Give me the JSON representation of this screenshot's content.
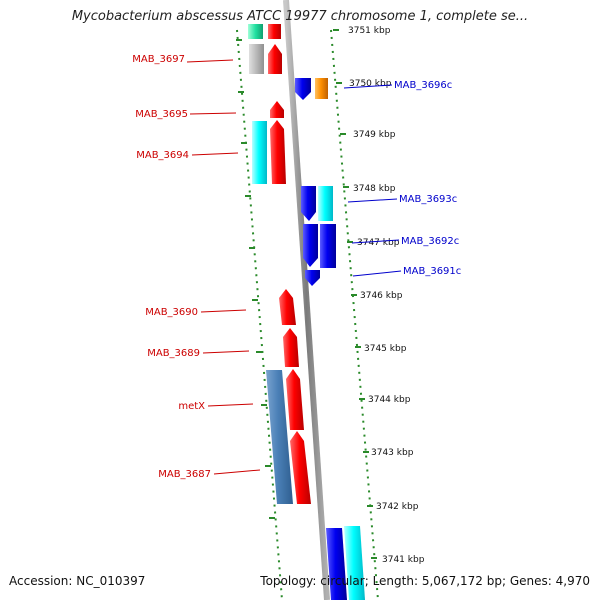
{
  "title": "Mycobacterium abscessus ATCC 19977 chromosome 1, complete se...",
  "footer": {
    "accession_label": "Accession:",
    "accession": "NC_010397",
    "topology_label": "Topology:",
    "topology": "circular;",
    "length_label": "Length:",
    "length": "5,067,172 bp;",
    "genes_label": "Genes:",
    "genes": "4,970"
  },
  "colors": {
    "forward_gene_label": "#cc0000",
    "reverse_gene_label": "#0000cc",
    "backbone": "#8c8c8c",
    "tick": "#2a8a2a"
  },
  "kbp_ticks": [
    "3751 kbp",
    "3750 kbp",
    "3749 kbp",
    "3748 kbp",
    "3747 kbp",
    "3746 kbp",
    "3745 kbp",
    "3744 kbp",
    "3743 kbp",
    "3742 kbp",
    "3741 kbp"
  ],
  "left_labels": [
    "MAB_3697",
    "MAB_3695",
    "MAB_3694",
    "MAB_3690",
    "MAB_3689",
    "metX",
    "MAB_3687"
  ],
  "right_labels": [
    "MAB_3696c",
    "MAB_3693c",
    "MAB_3692c",
    "MAB_3691c"
  ]
}
